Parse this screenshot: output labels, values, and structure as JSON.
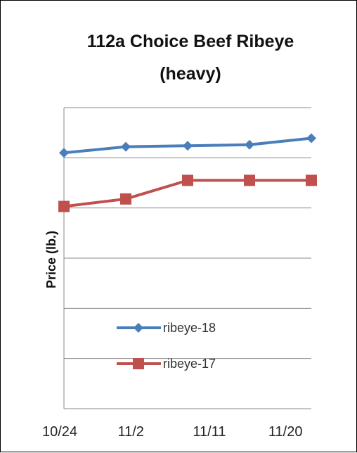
{
  "chart_data": {
    "type": "line",
    "title_line1": "112a Choice Beef Ribeye",
    "title_line2": "(heavy)",
    "xlabel": "",
    "ylabel": "Price (lb.)",
    "categories": [
      "10/24",
      "11/2",
      "11/11",
      "11/20"
    ],
    "x": [
      0,
      1,
      2,
      3,
      4
    ],
    "ylim": [
      0,
      6
    ],
    "grid": true,
    "legend_position": "center",
    "series": [
      {
        "name": "ribeye-18",
        "color": "#4a7ebb",
        "marker": "diamond",
        "values": [
          5.1,
          5.22,
          5.24,
          5.26,
          5.39
        ]
      },
      {
        "name": "ribeye-17",
        "color": "#c0504d",
        "marker": "square",
        "values": [
          4.03,
          4.18,
          4.55,
          4.55,
          4.55
        ]
      }
    ]
  }
}
